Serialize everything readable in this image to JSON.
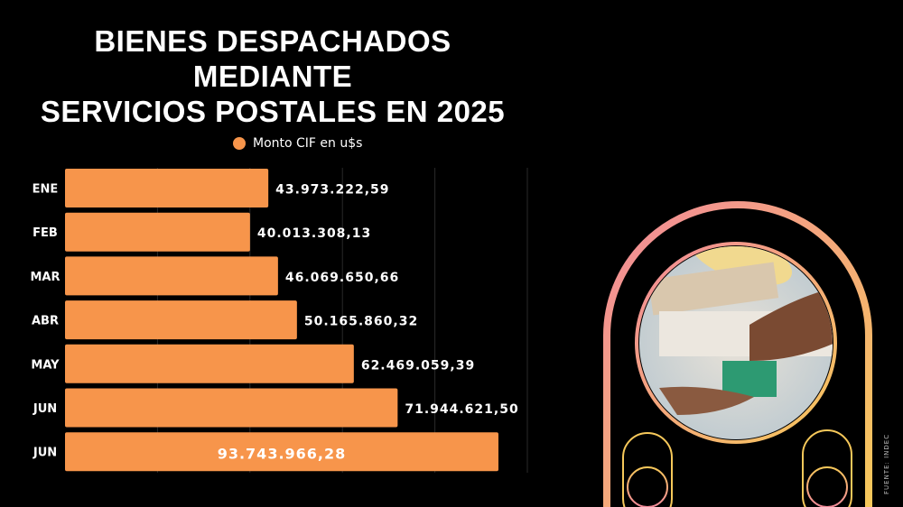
{
  "title_lines": [
    "BIENES DESPACHADOS MEDIANTE",
    "SERVICIOS POSTALES EN 2025"
  ],
  "source": "FUENTE: INDEC",
  "colors": {
    "bar": "#F7954B",
    "background": "#000000",
    "frame_gradient": [
      "#F28A9A",
      "#F6C85A"
    ]
  },
  "image": {
    "description_icon": "package-handoff-photo"
  },
  "chart_data": {
    "type": "bar",
    "orientation": "horizontal",
    "title": "BIENES DESPACHADOS MEDIANTE SERVICIOS POSTALES EN 2025",
    "legend": {
      "entries": [
        "Monto CIF en u$s"
      ],
      "placement": "top"
    },
    "categories": [
      "ENE",
      "FEB",
      "MAR",
      "ABR",
      "MAY",
      "JUN",
      "JUN"
    ],
    "series": [
      {
        "name": "Monto CIF en u$s",
        "values": [
          43973222.59,
          40013308.13,
          46069650.66,
          50165860.32,
          62469059.39,
          71944621.5,
          93743966.28
        ]
      }
    ],
    "data_labels": [
      "43.973.222,59",
      "40.013.308,13",
      "46.069.650,66",
      "50.165.860,32",
      "62.469.059,39",
      "71.944.621,50",
      "93.743.966,28"
    ],
    "xlim": [
      0,
      100000000
    ],
    "grid": true,
    "gridlines": [
      20000000,
      40000000,
      60000000,
      80000000,
      100000000
    ]
  }
}
